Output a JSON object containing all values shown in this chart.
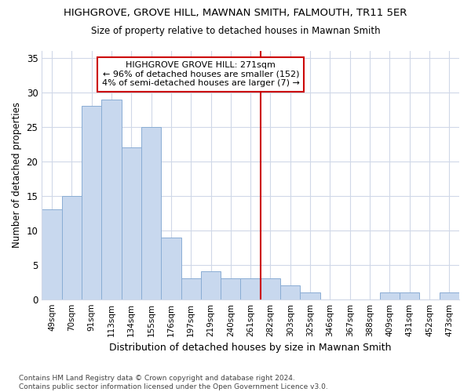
{
  "title1": "HIGHGROVE, GROVE HILL, MAWNAN SMITH, FALMOUTH, TR11 5ER",
  "title2": "Size of property relative to detached houses in Mawnan Smith",
  "xlabel": "Distribution of detached houses by size in Mawnan Smith",
  "ylabel": "Number of detached properties",
  "categories": [
    "49sqm",
    "70sqm",
    "91sqm",
    "113sqm",
    "134sqm",
    "155sqm",
    "176sqm",
    "197sqm",
    "219sqm",
    "240sqm",
    "261sqm",
    "282sqm",
    "303sqm",
    "325sqm",
    "346sqm",
    "367sqm",
    "388sqm",
    "409sqm",
    "431sqm",
    "452sqm",
    "473sqm"
  ],
  "values": [
    13,
    15,
    28,
    29,
    22,
    25,
    9,
    3,
    4,
    3,
    3,
    3,
    2,
    1,
    0,
    0,
    0,
    1,
    1,
    0,
    1
  ],
  "bar_color": "#c8d8ee",
  "bar_edgecolor": "#8aadd4",
  "vline_x_index": 11,
  "vline_color": "#cc0000",
  "annotation_text": "HIGHGROVE GROVE HILL: 271sqm\n← 96% of detached houses are smaller (152)\n4% of semi-detached houses are larger (7) →",
  "annotation_box_facecolor": "#ffffff",
  "annotation_box_edgecolor": "#cc0000",
  "ylim": [
    0,
    36
  ],
  "yticks": [
    0,
    5,
    10,
    15,
    20,
    25,
    30,
    35
  ],
  "footer": "Contains HM Land Registry data © Crown copyright and database right 2024.\nContains public sector information licensed under the Open Government Licence v3.0.",
  "fig_bg_color": "#ffffff",
  "plot_bg_color": "#ffffff",
  "grid_color": "#d0d8e8"
}
